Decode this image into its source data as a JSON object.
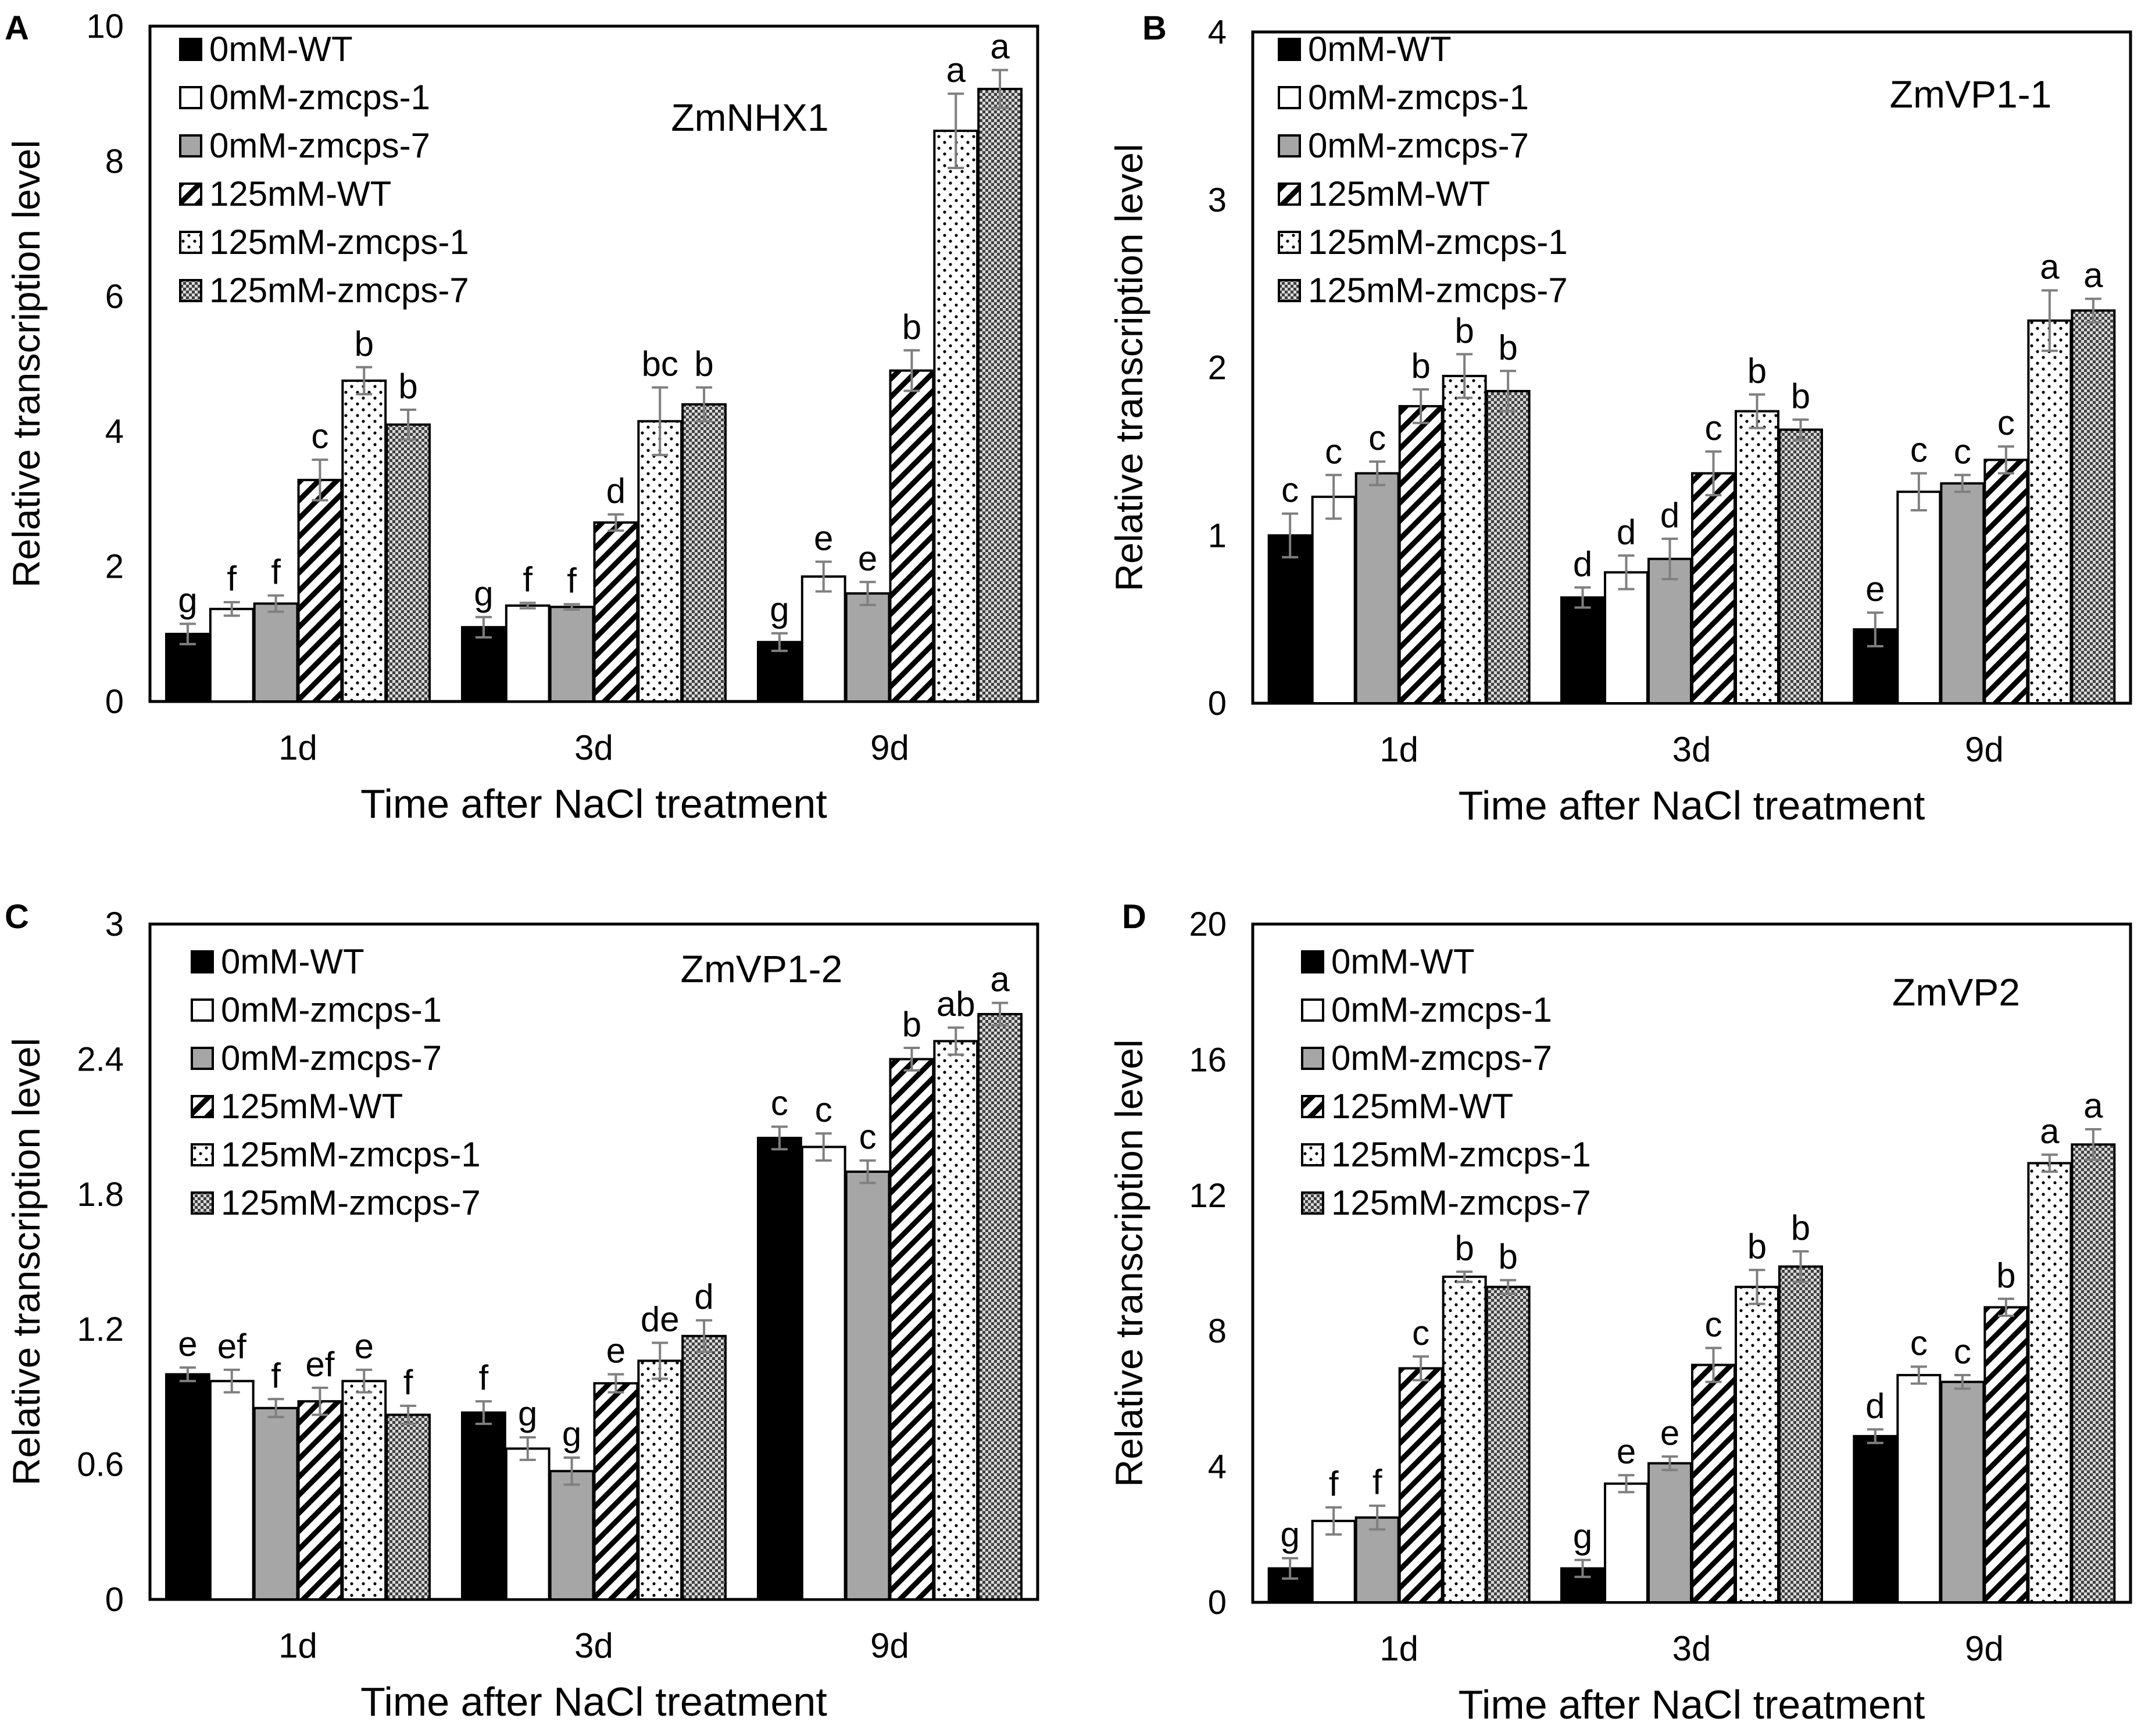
{
  "figure": {
    "categories": [
      "1d",
      "3d",
      "9d"
    ],
    "xlabel": "Time after NaCl treatment",
    "ylabel": "Relative transcription level",
    "legend": [
      "0mM-WT",
      "0mM-zmcps-1",
      "0mM-zmcps-7",
      "125mM-WT",
      "125mM-zmcps-1",
      "125mM-zmcps-7"
    ],
    "colors": {
      "black": "#000000",
      "white": "#ffffff",
      "gray": "#a6a6a6",
      "error_bar": "#7f7f7f"
    }
  },
  "chart_data": [
    {
      "panel": "A",
      "type": "bar",
      "title": "ZmNHX1",
      "categories": [
        "1d",
        "3d",
        "9d"
      ],
      "xlabel": "Time after NaCl treatment",
      "ylabel": "Relative transcription level",
      "ylim": [
        0,
        10
      ],
      "yticks": [
        "0",
        "2",
        "4",
        "6",
        "8",
        "10"
      ],
      "series": [
        {
          "name": "0mM-WT",
          "values": [
            1.0,
            1.1,
            0.88
          ],
          "errors": [
            0.15,
            0.15,
            0.13
          ],
          "labels": [
            "g",
            "g",
            "g"
          ]
        },
        {
          "name": "0mM-zmcps-1",
          "values": [
            1.37,
            1.42,
            1.85
          ],
          "errors": [
            0.1,
            0.04,
            0.22
          ],
          "labels": [
            "f",
            "f",
            "e"
          ]
        },
        {
          "name": "0mM-zmcps-7",
          "values": [
            1.45,
            1.4,
            1.6
          ],
          "errors": [
            0.12,
            0.04,
            0.17
          ],
          "labels": [
            "f",
            "f",
            "e"
          ]
        },
        {
          "name": "125mM-WT",
          "values": [
            3.28,
            2.65,
            4.9
          ],
          "errors": [
            0.3,
            0.12,
            0.3
          ],
          "labels": [
            "c",
            "d",
            "b"
          ]
        },
        {
          "name": "125mM-zmcps-1",
          "values": [
            4.75,
            4.15,
            8.45
          ],
          "errors": [
            0.2,
            0.5,
            0.55
          ],
          "labels": [
            "b",
            "bc",
            "a"
          ]
        },
        {
          "name": "125mM-zmcps-7",
          "values": [
            4.1,
            4.4,
            9.07
          ],
          "errors": [
            0.22,
            0.25,
            0.28
          ],
          "labels": [
            "b",
            "b",
            "a"
          ]
        }
      ]
    },
    {
      "panel": "B",
      "type": "bar",
      "title": "ZmVP1-1",
      "categories": [
        "1d",
        "3d",
        "9d"
      ],
      "xlabel": "Time after NaCl treatment",
      "ylabel": "Relative transcription level",
      "ylim": [
        0,
        4
      ],
      "yticks": [
        "0",
        "1",
        "2",
        "3",
        "4"
      ],
      "series": [
        {
          "name": "0mM-WT",
          "values": [
            1.0,
            0.63,
            0.44
          ],
          "errors": [
            0.13,
            0.06,
            0.1
          ],
          "labels": [
            "c",
            "d",
            "e"
          ]
        },
        {
          "name": "0mM-zmcps-1",
          "values": [
            1.23,
            0.78,
            1.26
          ],
          "errors": [
            0.13,
            0.1,
            0.11
          ],
          "labels": [
            "c",
            "d",
            "c"
          ]
        },
        {
          "name": "0mM-zmcps-7",
          "values": [
            1.37,
            0.86,
            1.31
          ],
          "errors": [
            0.07,
            0.12,
            0.05
          ],
          "labels": [
            "c",
            "d",
            "c"
          ]
        },
        {
          "name": "125mM-WT",
          "values": [
            1.77,
            1.37,
            1.45
          ],
          "errors": [
            0.1,
            0.13,
            0.08
          ],
          "labels": [
            "b",
            "c",
            "c"
          ]
        },
        {
          "name": "125mM-zmcps-1",
          "values": [
            1.95,
            1.74,
            2.28
          ],
          "errors": [
            0.13,
            0.1,
            0.18
          ],
          "labels": [
            "b",
            "b",
            "a"
          ]
        },
        {
          "name": "125mM-zmcps-7",
          "values": [
            1.86,
            1.63,
            2.34
          ],
          "errors": [
            0.12,
            0.06,
            0.07
          ],
          "labels": [
            "b",
            "b",
            "a"
          ]
        }
      ]
    },
    {
      "panel": "C",
      "type": "bar",
      "title": "ZmVP1-2",
      "categories": [
        "1d",
        "3d",
        "9d"
      ],
      "xlabel": "Time after NaCl treatment",
      "ylabel": "Relative transcription level",
      "ylim": [
        0,
        3
      ],
      "yticks": [
        "0",
        "0.6",
        "1.2",
        "1.8",
        "2.4",
        "3"
      ],
      "series": [
        {
          "name": "0mM-WT",
          "values": [
            1.0,
            0.83,
            2.05
          ],
          "errors": [
            0.03,
            0.05,
            0.05
          ],
          "labels": [
            "e",
            "f",
            "c"
          ]
        },
        {
          "name": "0mM-zmcps-1",
          "values": [
            0.97,
            0.67,
            2.01
          ],
          "errors": [
            0.05,
            0.05,
            0.06
          ],
          "labels": [
            "ef",
            "g",
            "c"
          ]
        },
        {
          "name": "0mM-zmcps-7",
          "values": [
            0.85,
            0.57,
            1.9
          ],
          "errors": [
            0.04,
            0.06,
            0.05
          ],
          "labels": [
            "f",
            "g",
            "c"
          ]
        },
        {
          "name": "125mM-WT",
          "values": [
            0.88,
            0.96,
            2.4
          ],
          "errors": [
            0.06,
            0.04,
            0.05
          ],
          "labels": [
            "ef",
            "e",
            "b"
          ]
        },
        {
          "name": "125mM-zmcps-1",
          "values": [
            0.97,
            1.06,
            2.48
          ],
          "errors": [
            0.05,
            0.08,
            0.06
          ],
          "labels": [
            "e",
            "de",
            "ab"
          ]
        },
        {
          "name": "125mM-zmcps-7",
          "values": [
            0.82,
            1.17,
            2.6
          ],
          "errors": [
            0.04,
            0.07,
            0.05
          ],
          "labels": [
            "f",
            "d",
            "a"
          ]
        }
      ]
    },
    {
      "panel": "D",
      "type": "bar",
      "title": "ZmVP2",
      "categories": [
        "1d",
        "3d",
        "9d"
      ],
      "xlabel": "Time after NaCl treatment",
      "ylabel": "Relative transcription level",
      "ylim": [
        0,
        20
      ],
      "yticks": [
        "0",
        "4",
        "8",
        "12",
        "16",
        "20"
      ],
      "series": [
        {
          "name": "0mM-WT",
          "values": [
            1.0,
            1.0,
            4.9
          ],
          "errors": [
            0.3,
            0.25,
            0.2
          ],
          "labels": [
            "g",
            "g",
            "d"
          ]
        },
        {
          "name": "0mM-zmcps-1",
          "values": [
            2.4,
            3.5,
            6.7
          ],
          "errors": [
            0.4,
            0.25,
            0.25
          ],
          "labels": [
            "f",
            "e",
            "c"
          ]
        },
        {
          "name": "0mM-zmcps-7",
          "values": [
            2.5,
            4.1,
            6.5
          ],
          "errors": [
            0.35,
            0.2,
            0.2
          ],
          "labels": [
            "f",
            "e",
            "c"
          ]
        },
        {
          "name": "125mM-WT",
          "values": [
            6.9,
            7.0,
            8.7
          ],
          "errors": [
            0.35,
            0.5,
            0.25
          ],
          "labels": [
            "c",
            "c",
            "b"
          ]
        },
        {
          "name": "125mM-zmcps-1",
          "values": [
            9.6,
            9.3,
            12.95
          ],
          "errors": [
            0.15,
            0.5,
            0.25
          ],
          "labels": [
            "b",
            "b",
            "a"
          ]
        },
        {
          "name": "125mM-zmcps-7",
          "values": [
            9.3,
            9.9,
            13.5
          ],
          "errors": [
            0.2,
            0.45,
            0.45
          ],
          "labels": [
            "b",
            "b",
            "a"
          ]
        }
      ]
    }
  ]
}
